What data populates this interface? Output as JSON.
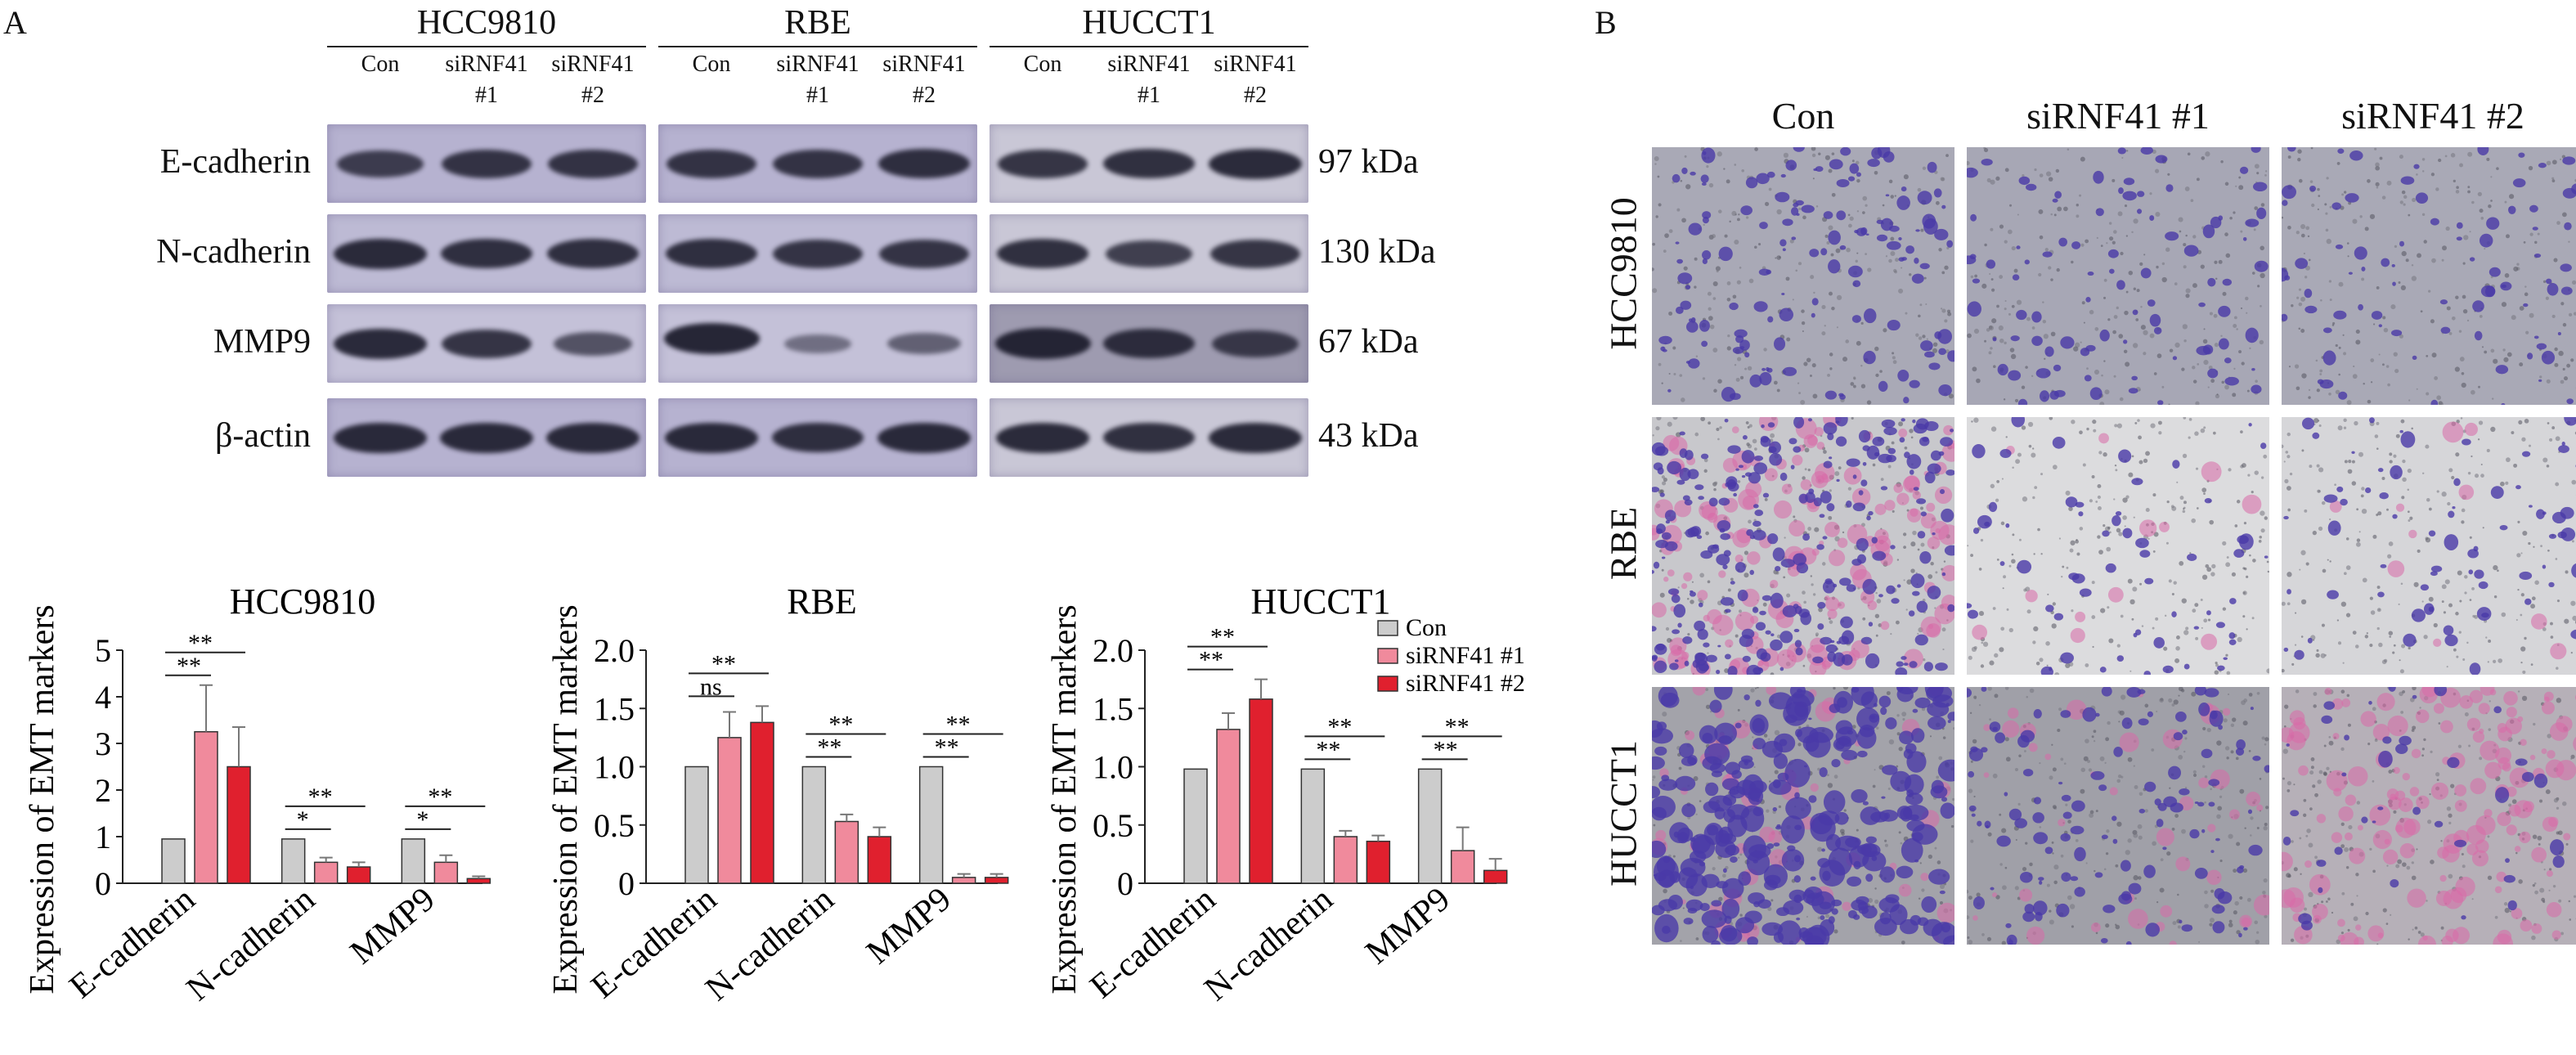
{
  "panel_a_label": "A",
  "panel_b_label": "B",
  "western_blot": {
    "cell_lines": [
      "HCC9810",
      "RBE",
      "HUCCT1"
    ],
    "lanes": [
      {
        "line1": "Con",
        "line2": ""
      },
      {
        "line1": "siRNF41",
        "line2": "#1"
      },
      {
        "line1": "siRNF41",
        "line2": "#2"
      }
    ],
    "markers": [
      {
        "name": "E-cadherin",
        "size": "97 kDa"
      },
      {
        "name": "N-cadherin",
        "size": "130 kDa"
      },
      {
        "name": "MMP9",
        "size": "67 kDa"
      },
      {
        "name": "β-actin",
        "size": "43 kDa"
      }
    ]
  },
  "chart_data": [
    {
      "type": "bar",
      "title": "HCC9810",
      "ylabel": "Expression of EMT markers",
      "categories": [
        "E-cadherin",
        "N-cadherin",
        "MMP9"
      ],
      "ylim": [
        0,
        5
      ],
      "yticks": [
        "0",
        "1",
        "2",
        "3",
        "4",
        "5"
      ],
      "series": [
        {
          "values": [
            0.95,
            0.95,
            0.95
          ],
          "errors": [
            0,
            0,
            0
          ],
          "color": "#cccccc"
        },
        {
          "values": [
            3.25,
            0.45,
            0.45
          ],
          "errors": [
            1.0,
            0.1,
            0.15
          ],
          "color": "#f08a9c"
        },
        {
          "values": [
            2.5,
            0.35,
            0.1
          ],
          "errors": [
            0.85,
            0.1,
            0.05
          ],
          "color": "#e0202e"
        }
      ],
      "significance": [
        {
          "category": 0,
          "lower": "**",
          "upper": "**"
        },
        {
          "category": 1,
          "lower": "*",
          "upper": "**"
        },
        {
          "category": 2,
          "lower": "*",
          "upper": "**"
        }
      ]
    },
    {
      "type": "bar",
      "title": "RBE",
      "ylabel": "Expression of EMT markers",
      "categories": [
        "E-cadherin",
        "N-cadherin",
        "MMP9"
      ],
      "ylim": [
        0,
        2.0
      ],
      "yticks": [
        "0",
        "0.5",
        "1.0",
        "1.5",
        "2.0"
      ],
      "series": [
        {
          "values": [
            1.0,
            1.0,
            1.0
          ],
          "errors": [
            0,
            0,
            0
          ],
          "color": "#cccccc"
        },
        {
          "values": [
            1.25,
            0.53,
            0.05
          ],
          "errors": [
            0.22,
            0.06,
            0.03
          ],
          "color": "#f08a9c"
        },
        {
          "values": [
            1.38,
            0.4,
            0.05
          ],
          "errors": [
            0.14,
            0.08,
            0.03
          ],
          "color": "#e0202e"
        }
      ],
      "significance": [
        {
          "category": 0,
          "lower": "ns",
          "upper": "**"
        },
        {
          "category": 1,
          "lower": "**",
          "upper": "**"
        },
        {
          "category": 2,
          "lower": "**",
          "upper": "**"
        }
      ]
    },
    {
      "type": "bar",
      "title": "HUCCT1",
      "ylabel": "Expression of EMT markers",
      "categories": [
        "E-cadherin",
        "N-cadherin",
        "MMP9"
      ],
      "ylim": [
        0,
        2.0
      ],
      "yticks": [
        "0",
        "0.5",
        "1.0",
        "1.5",
        "2.0"
      ],
      "series": [
        {
          "name": "Con",
          "values": [
            0.98,
            0.98,
            0.98
          ],
          "errors": [
            0,
            0,
            0
          ],
          "color": "#cccccc"
        },
        {
          "name": "siRNF41 #1",
          "values": [
            1.32,
            0.4,
            0.28
          ],
          "errors": [
            0.14,
            0.05,
            0.2
          ],
          "color": "#f08a9c"
        },
        {
          "name": "siRNF41 #2",
          "values": [
            1.58,
            0.36,
            0.11
          ],
          "errors": [
            0.17,
            0.05,
            0.1
          ],
          "color": "#e0202e"
        }
      ],
      "significance": [
        {
          "category": 0,
          "lower": "**",
          "upper": "**"
        },
        {
          "category": 1,
          "lower": "**",
          "upper": "**"
        },
        {
          "category": 2,
          "lower": "**",
          "upper": "**"
        }
      ],
      "legend_position": "top-right"
    }
  ],
  "invasion_images": {
    "columns": [
      "Con",
      "siRNF41 #1",
      "siRNF41 #2"
    ],
    "rows": [
      "HCC9810",
      "RBE",
      "HUCCT1"
    ]
  },
  "colors": {
    "blot_bg": "#b9b6d3",
    "band": "#1e1e2e",
    "stain_purple": "#4a3aa8",
    "stain_pink": "#d86aa8",
    "micro_bg_grey": "#9a9aa4",
    "micro_bg_light": "#d8d8dc"
  }
}
